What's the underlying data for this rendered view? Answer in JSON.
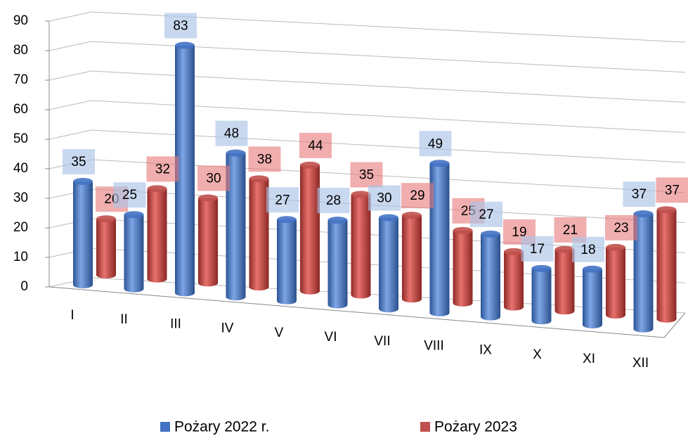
{
  "chart_data": {
    "type": "bar3d",
    "categories": [
      "I",
      "II",
      "III",
      "IV",
      "V",
      "VI",
      "VII",
      "VIII",
      "IX",
      "X",
      "XI",
      "XII"
    ],
    "series": [
      {
        "name": "Pożary 2022 r.",
        "color": "#4472c4",
        "values": [
          35,
          25,
          83,
          48,
          27,
          28,
          30,
          49,
          27,
          17,
          18,
          37
        ]
      },
      {
        "name": "Pożary 2023",
        "color": "#c0504d",
        "values": [
          20,
          32,
          30,
          38,
          44,
          35,
          29,
          25,
          19,
          21,
          23,
          37
        ]
      }
    ],
    "ylim": [
      0,
      90
    ],
    "yticks": [
      0,
      10,
      20,
      30,
      40,
      50,
      60,
      70,
      80,
      90
    ],
    "grid": true,
    "legend": "bottom"
  }
}
